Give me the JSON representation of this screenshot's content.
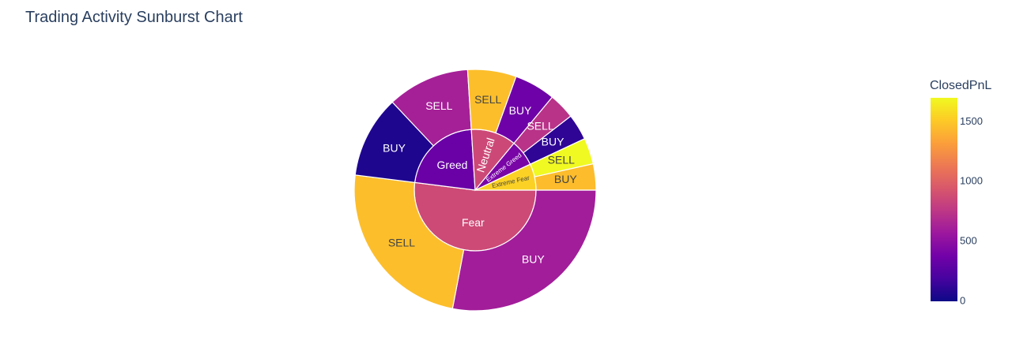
{
  "chart_data": {
    "type": "sunburst",
    "title": "Trading Activity Sunburst Chart",
    "color_metric": "ClosedPnL",
    "colorscale": [
      "#0d0887",
      "#46039f",
      "#7201a8",
      "#9c179e",
      "#bd3786",
      "#d8576b",
      "#ed7953",
      "#fb9f3a",
      "#fdca26",
      "#f0f921"
    ],
    "color_range": [
      0,
      1700
    ],
    "colorbar_ticks": [
      0,
      500,
      1000,
      1500
    ],
    "parents": [
      {
        "label": "Fear",
        "value": 52,
        "color_value": 870,
        "children": [
          {
            "label": "BUY",
            "value": 28,
            "color_value": 600
          },
          {
            "label": "SELL",
            "value": 24,
            "color_value": 1460
          }
        ]
      },
      {
        "label": "Greed",
        "value": 22,
        "color_value": 340,
        "children": [
          {
            "label": "BUY",
            "value": 11,
            "color_value": 60
          },
          {
            "label": "SELL",
            "value": 11,
            "color_value": 620
          }
        ]
      },
      {
        "label": "Neutral",
        "value": 12,
        "color_value": 860,
        "children": [
          {
            "label": "SELL",
            "value": 6.5,
            "color_value": 1460
          },
          {
            "label": "BUY",
            "value": 5.5,
            "color_value": 360
          }
        ]
      },
      {
        "label": "Extreme Greed",
        "value": 7,
        "color_value": 410,
        "children": [
          {
            "label": "SELL",
            "value": 3.5,
            "color_value": 730
          },
          {
            "label": "BUY",
            "value": 3.5,
            "color_value": 110
          }
        ]
      },
      {
        "label": "Extreme Fear",
        "value": 7,
        "color_value": 1540,
        "children": [
          {
            "label": "SELL",
            "value": 3.5,
            "color_value": 1700
          },
          {
            "label": "BUY",
            "value": 3.5,
            "color_value": 1450
          }
        ]
      }
    ]
  }
}
